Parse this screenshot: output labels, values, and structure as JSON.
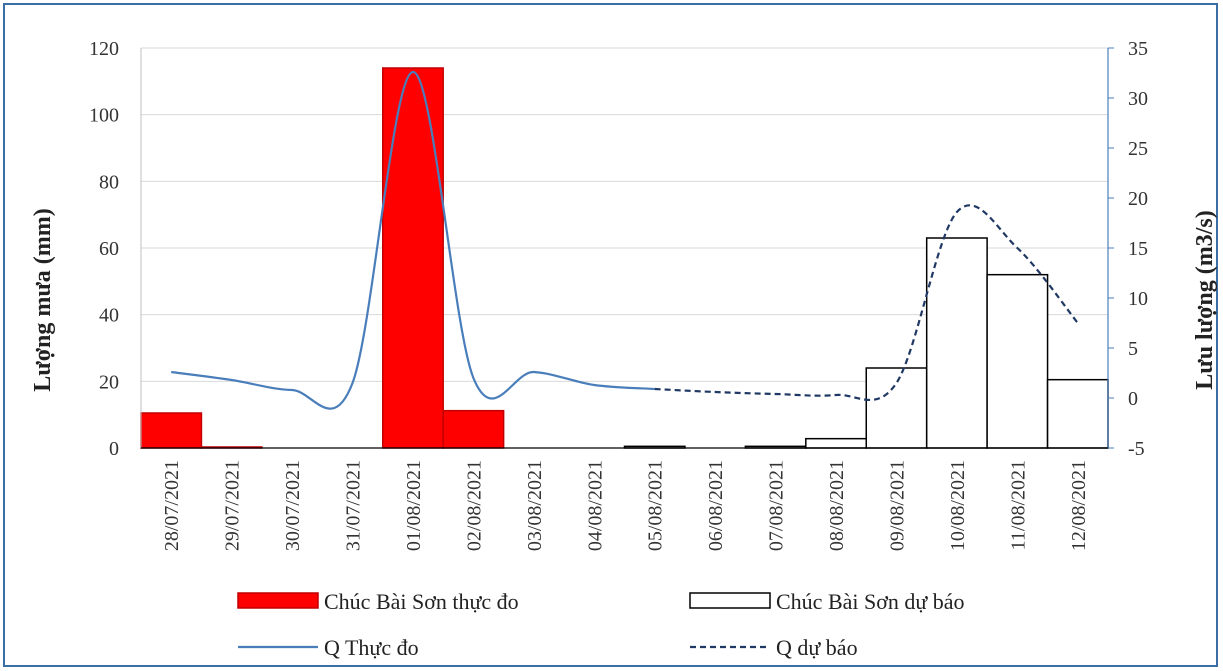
{
  "chart_data": {
    "type": "bar",
    "title": "",
    "categories": [
      "28/07/2021",
      "29/07/2021",
      "30/07/2021",
      "31/07/2021",
      "01/08/2021",
      "02/08/2021",
      "03/08/2021",
      "04/08/2021",
      "05/08/2021",
      "06/08/2021",
      "07/08/2021",
      "08/08/2021",
      "09/08/2021",
      "10/08/2021",
      "11/08/2021",
      "12/08/2021"
    ],
    "ylabel": "Lượng mưa (mm)",
    "y2label": "Lưu lượng (m3/s)",
    "ylim": [
      0,
      120
    ],
    "y_ticks": [
      "0",
      "20",
      "40",
      "60",
      "80",
      "100",
      "120"
    ],
    "y2lim": [
      -5,
      35
    ],
    "y2_ticks": [
      "-5",
      "0",
      "5",
      "10",
      "15",
      "20",
      "25",
      "30",
      "35"
    ],
    "grid": true,
    "legend_position": "bottom",
    "series": [
      {
        "name": "Chúc Bài Sơn thực đo",
        "kind": "bar",
        "axis": "left",
        "fill": "#ff0000",
        "values": [
          10.5,
          0.3,
          0,
          0,
          114,
          11.2,
          0,
          0,
          null,
          null,
          null,
          null,
          null,
          null,
          null,
          null
        ]
      },
      {
        "name": "Chúc Bài Sơn dự báo",
        "kind": "bar",
        "axis": "left",
        "fill": "#ffffff",
        "values": [
          null,
          null,
          null,
          null,
          null,
          null,
          null,
          null,
          0.5,
          0,
          0.5,
          2.8,
          24,
          63,
          52,
          20.5
        ]
      },
      {
        "name": "Q Thực đo",
        "kind": "line",
        "axis": "right",
        "color": "#4a7ebb",
        "dash": "solid",
        "x": [
          "28/07/2021",
          "29/07/2021",
          "30/07/2021",
          "31/07/2021",
          "01/08/2021",
          "02/08/2021",
          "03/08/2021",
          "04/08/2021",
          "05/08/2021"
        ],
        "values": [
          2.6,
          1.8,
          0.8,
          1.5,
          32.6,
          2.0,
          2.6,
          1.3,
          0.9
        ]
      },
      {
        "name": "Q dự báo",
        "kind": "line",
        "axis": "right",
        "color": "#1f3864",
        "dash": "dashed",
        "x": [
          "05/08/2021",
          "06/08/2021",
          "07/08/2021",
          "08/08/2021",
          "09/08/2021",
          "10/08/2021",
          "11/08/2021",
          "12/08/2021"
        ],
        "values": [
          0.9,
          0.6,
          0.4,
          0.3,
          1.5,
          18.6,
          15.0,
          7.5
        ]
      }
    ]
  }
}
